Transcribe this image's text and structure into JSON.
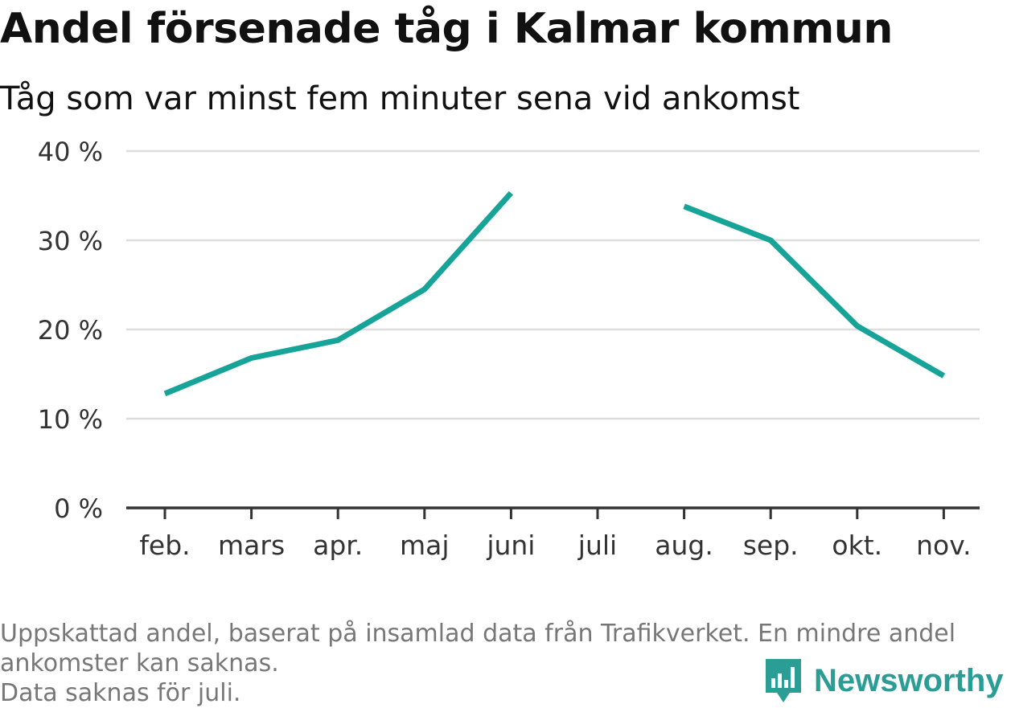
{
  "title": "Andel försenade tåg i Kalmar kommun",
  "subtitle": "Tåg som var minst fem minuter sena vid ankomst",
  "footnote": {
    "line1": "Uppskattad andel, baserat på insamlad data från Trafikverket. En mindre andel",
    "line2": "ankomster kan saknas.",
    "line3": "Data saknas för juli."
  },
  "logo": {
    "text": "Newsworthy",
    "icon": "bar-chart-icon"
  },
  "colors": {
    "line": "#16a398",
    "grid": "#dddddd",
    "axis": "#333333",
    "logo": "#2a9d95"
  },
  "chart_data": {
    "type": "line",
    "title": "Andel försenade tåg i Kalmar kommun",
    "subtitle": "Tåg som var minst fem minuter sena vid ankomst",
    "categories": [
      "feb.",
      "mars",
      "apr.",
      "maj",
      "juni",
      "juli",
      "aug.",
      "sep.",
      "okt.",
      "nov."
    ],
    "series": [
      {
        "values": [
          12.8,
          16.8,
          18.8,
          24.5,
          35.3,
          null,
          33.8,
          30.0,
          20.4,
          14.8
        ]
      }
    ],
    "ylim": [
      0,
      40
    ],
    "yticks": [
      0,
      10,
      20,
      30,
      40
    ],
    "ytick_labels": [
      "0 %",
      "10 %",
      "20 %",
      "30 %",
      "40 %"
    ],
    "grid": true,
    "legend": "none"
  }
}
